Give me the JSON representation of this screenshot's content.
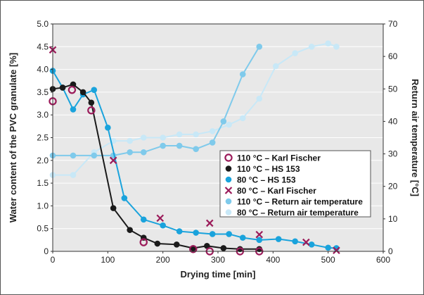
{
  "chart_data": {
    "type": "line",
    "xlabel": "Drying time [min]",
    "ylabel_left": "Water content of the PVC granulate [%]",
    "ylabel_right": "Return air temperature [°C]",
    "xlim": [
      0,
      600
    ],
    "ylim_left": [
      0,
      5.0
    ],
    "ylim_right": [
      0,
      70
    ],
    "x_ticks": [
      "0",
      "100",
      "200",
      "300",
      "400",
      "500",
      "600"
    ],
    "y_left_ticks": [
      "0",
      "0.5",
      "1.0",
      "1.5",
      "2.0",
      "2.5",
      "3.0",
      "3.5",
      "4.0",
      "4.5",
      "5.0"
    ],
    "y_right_ticks": [
      "0",
      "10",
      "20",
      "30",
      "40",
      "50",
      "60",
      "70"
    ],
    "grid": "horizontal",
    "legend_position": "center-right",
    "colors": {
      "background": "#e8e8e8",
      "kf110": "#9b1b5a",
      "hs110": "#1a1a1a",
      "hs80": "#1aa3dc",
      "kf80": "#9b1b5a",
      "ret110": "#7fcaeb",
      "ret80": "#c8e8f7"
    },
    "series": [
      {
        "name": "110 °C – Karl Fischer",
        "axis": "left",
        "style": "open-circle",
        "color": "#9b1b5a",
        "x": [
          0,
          35,
          70,
          165,
          255,
          285,
          340,
          375
        ],
        "y": [
          3.3,
          3.55,
          3.1,
          0.2,
          0.05,
          0.0,
          0.0,
          0.0
        ]
      },
      {
        "name": "110 °C – HS 153",
        "axis": "left",
        "style": "line-dot",
        "color": "#1a1a1a",
        "x": [
          0,
          18,
          37,
          55,
          70,
          110,
          140,
          165,
          190,
          225,
          255,
          280,
          310,
          340,
          375
        ],
        "y": [
          3.57,
          3.6,
          3.67,
          3.5,
          3.27,
          0.95,
          0.47,
          0.3,
          0.17,
          0.15,
          0.07,
          0.12,
          0.07,
          0.05,
          0.05
        ]
      },
      {
        "name": "80 °C – HS 153",
        "axis": "left",
        "style": "line-dot",
        "color": "#1aa3dc",
        "x": [
          0,
          18,
          37,
          55,
          75,
          100,
          130,
          165,
          200,
          230,
          260,
          290,
          320,
          345,
          375,
          410,
          440,
          470,
          500,
          515
        ],
        "y": [
          3.97,
          3.6,
          3.12,
          3.45,
          3.55,
          2.72,
          1.17,
          0.7,
          0.57,
          0.44,
          0.41,
          0.38,
          0.38,
          0.3,
          0.25,
          0.27,
          0.22,
          0.15,
          0.08,
          0.07
        ]
      },
      {
        "name": "80 °C – Karl Fischer",
        "axis": "left",
        "style": "cross",
        "color": "#9b1b5a",
        "x": [
          0,
          110,
          195,
          285,
          375,
          460,
          515
        ],
        "y": [
          4.43,
          2.0,
          0.73,
          0.62,
          0.37,
          0.2,
          0.02
        ]
      },
      {
        "name": "110 °C – Return air temperature",
        "axis": "right",
        "style": "line-dot",
        "color": "#7fcaeb",
        "x": [
          0,
          37,
          75,
          110,
          140,
          165,
          200,
          230,
          260,
          290,
          310,
          345,
          375
        ],
        "y": [
          29.5,
          29.5,
          29.5,
          29.5,
          30.5,
          30.5,
          32.5,
          32.5,
          31.5,
          33.5,
          40,
          54.5,
          63
        ]
      },
      {
        "name": "80 °C – Return air temperature",
        "axis": "right",
        "style": "line-dot",
        "color": "#c8e8f7",
        "x": [
          0,
          37,
          75,
          110,
          140,
          165,
          200,
          230,
          260,
          290,
          320,
          345,
          375,
          405,
          440,
          470,
          500,
          515
        ],
        "y": [
          23.5,
          23.5,
          30.5,
          34,
          34,
          35,
          35,
          36,
          36,
          37,
          39,
          41,
          47,
          57,
          61,
          63,
          64,
          63
        ]
      }
    ]
  }
}
